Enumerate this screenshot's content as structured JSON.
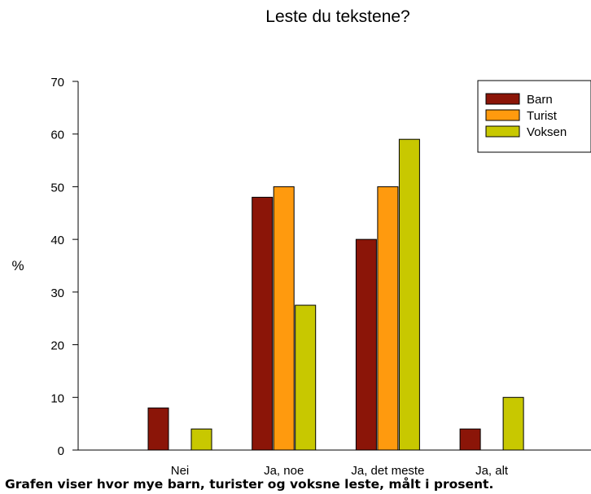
{
  "chart_data": {
    "type": "bar",
    "title": "Leste du tekstene?",
    "xlabel": "",
    "ylabel": "%",
    "ylim": [
      0,
      70
    ],
    "yticks": [
      0,
      10,
      20,
      30,
      40,
      50,
      60,
      70
    ],
    "categories": [
      "Nei",
      "Ja, noe",
      "Ja, det meste",
      "Ja, alt"
    ],
    "series": [
      {
        "name": "Barn",
        "values": [
          8,
          48,
          40,
          4
        ],
        "color": "#8b1508"
      },
      {
        "name": "Turist",
        "values": [
          0,
          50,
          50,
          0
        ],
        "color": "#ff9a0e"
      },
      {
        "name": "Voksen",
        "values": [
          4,
          27.5,
          59,
          10
        ],
        "color": "#c8c800"
      }
    ],
    "legend_position": "top-right",
    "grid": false
  },
  "caption": "Grafen viser hvor mye barn, turister og voksne leste, målt i prosent."
}
